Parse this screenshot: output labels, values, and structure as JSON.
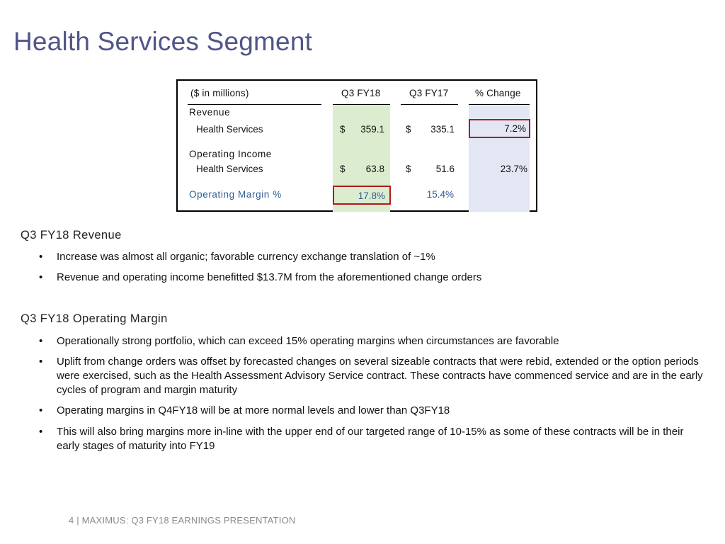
{
  "page_title": "Health Services Segment",
  "table": {
    "units_label": "($ in millions)",
    "col_q3fy18": "Q3 FY18",
    "col_q3fy17": "Q3 FY17",
    "col_change": "% Change",
    "revenue_label": "Revenue",
    "revenue_row": {
      "label": "Health Services",
      "currency_a": "$",
      "q3fy18": "359.1",
      "currency_b": "$",
      "q3fy17": "335.1",
      "change": "7.2%"
    },
    "op_income_label": "Operating Income",
    "op_income_row": {
      "label": "Health Services",
      "currency_a": "$",
      "q3fy18": "63.8",
      "currency_b": "$",
      "q3fy17": "51.6",
      "change": "23.7%"
    },
    "margin_row": {
      "label": "Operating Margin %",
      "q3fy18": "17.8%",
      "q3fy17": "15.4%"
    },
    "colors": {
      "q3fy18_bg": "#dcedcf",
      "change_bg": "#e3e7f4",
      "highlight": "#b01c1c"
    }
  },
  "sections": [
    {
      "heading": "Q3 FY18 Revenue",
      "bullets": [
        "Increase was almost all organic; favorable currency exchange translation of ~1%",
        "Revenue and operating income benefitted $13.7M from the aforementioned change orders"
      ]
    },
    {
      "heading": "Q3 FY18 Operating Margin",
      "bullets": [
        "Operationally strong portfolio, which can exceed 15% operating margins when circumstances are favorable",
        "Uplift from change orders was offset by forecasted changes on several sizeable contracts that were rebid, extended or the option periods were exercised, such as the Health Assessment Advisory Service contract. These contracts have commenced service and are in the early cycles of program and margin maturity",
        "Operating margins in Q4FY18 will be at more normal levels and lower than Q3FY18",
        "This will also bring margins more in-line with the upper end of our targeted range of 10-15% as some of these contracts will be in their early stages of maturity into FY19"
      ]
    }
  ],
  "bullet_glyph": "•",
  "footer": "4 | MAXIMUS: Q3 FY18 EARNINGS PRESENTATION"
}
